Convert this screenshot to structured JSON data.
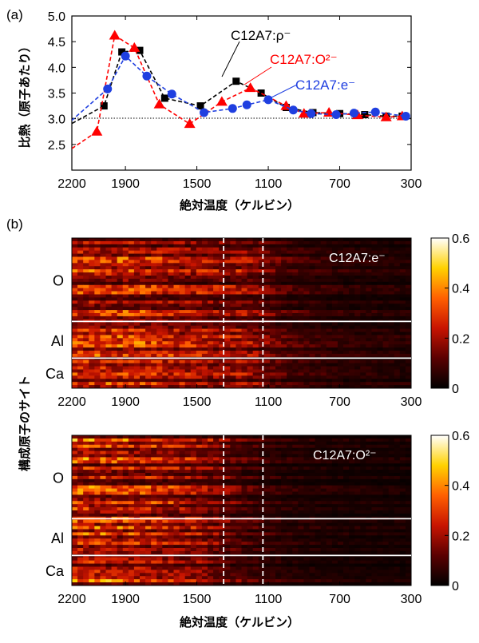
{
  "panel_a_label": "(a)",
  "panel_b_label": "(b)",
  "chart_data": [
    {
      "type": "line",
      "xlabel": "絶対温度（ケルビン）",
      "ylabel": "比熱（原子あたり）",
      "xlim": [
        2200,
        300
      ],
      "ylim": [
        2.0,
        5.0
      ],
      "x_ticks": [
        2200,
        1900,
        1500,
        1100,
        700,
        300
      ],
      "y_ticks": [
        2.5,
        3.0,
        3.5,
        4.0,
        4.5,
        5.0
      ],
      "reference_line": 3.0,
      "series": [
        {
          "name": "C12A7:ρ⁻",
          "color": "#000000",
          "marker": "square",
          "points": [
            [
              2230,
              2.85
            ],
            [
              2020,
              3.25
            ],
            [
              1920,
              4.3
            ],
            [
              1820,
              4.33
            ],
            [
              1680,
              3.4
            ],
            [
              1480,
              3.25
            ],
            [
              1280,
              3.73
            ],
            [
              1140,
              3.5
            ],
            [
              1000,
              3.22
            ],
            [
              850,
              3.12
            ],
            [
              700,
              3.1
            ],
            [
              560,
              3.08
            ],
            [
              440,
              3.05
            ],
            [
              350,
              3.05
            ]
          ]
        },
        {
          "name": "C12A7:O²⁻",
          "color": "#ff0000",
          "marker": "triangle",
          "points": [
            [
              2230,
              2.35
            ],
            [
              2060,
              2.75
            ],
            [
              1960,
              4.62
            ],
            [
              1850,
              4.38
            ],
            [
              1710,
              3.28
            ],
            [
              1540,
              2.9
            ],
            [
              1360,
              3.33
            ],
            [
              1200,
              3.6
            ],
            [
              1000,
              3.25
            ],
            [
              900,
              3.1
            ],
            [
              760,
              3.12
            ],
            [
              600,
              3.07
            ],
            [
              440,
              3.03
            ],
            [
              350,
              3.05
            ]
          ]
        },
        {
          "name": "C12A7:e⁻",
          "color": "#1f3fe0",
          "marker": "circle",
          "points": [
            [
              2230,
              2.88
            ],
            [
              2000,
              3.58
            ],
            [
              1900,
              4.22
            ],
            [
              1780,
              3.83
            ],
            [
              1640,
              3.48
            ],
            [
              1460,
              3.12
            ],
            [
              1300,
              3.2
            ],
            [
              1220,
              3.27
            ],
            [
              1100,
              3.37
            ],
            [
              960,
              3.17
            ],
            [
              860,
              3.1
            ],
            [
              720,
              3.08
            ],
            [
              620,
              3.11
            ],
            [
              500,
              3.13
            ],
            [
              330,
              3.05
            ]
          ]
        }
      ]
    },
    {
      "type": "heatmap",
      "title": "C12A7:e⁻",
      "xlabel": "",
      "ylabel": "構成原子のサイト",
      "xlim": [
        2200,
        300
      ],
      "x_ticks": [
        2200,
        1900,
        1500,
        1100,
        700,
        300
      ],
      "row_groups": [
        "O",
        "Al",
        "Ca"
      ],
      "dashed_lines_x": [
        1350,
        1130
      ],
      "colorbar": {
        "min": 0,
        "max": 0.6,
        "ticks": [
          0,
          0.2,
          0.4,
          0.6
        ]
      },
      "profile": {
        "x": [
          2200,
          1900,
          1500,
          1350,
          1250,
          1130,
          1000,
          700,
          300
        ],
        "value": [
          0.2,
          0.21,
          0.17,
          0.15,
          0.16,
          0.12,
          0.08,
          0.05,
          0.04
        ]
      }
    },
    {
      "type": "heatmap",
      "title": "C12A7:O²⁻",
      "xlabel": "絶対温度（ケルビン）",
      "ylabel": "構成原子のサイト",
      "xlim": [
        2200,
        300
      ],
      "x_ticks": [
        2200,
        1900,
        1500,
        1100,
        700,
        300
      ],
      "row_groups": [
        "O",
        "Al",
        "Ca"
      ],
      "dashed_lines_x": [
        1350,
        1130
      ],
      "colorbar": {
        "min": 0,
        "max": 0.6,
        "ticks": [
          0,
          0.2,
          0.4,
          0.6
        ]
      },
      "profile": {
        "x": [
          2200,
          1900,
          1500,
          1350,
          1250,
          1130,
          1000,
          700,
          300
        ],
        "value": [
          0.24,
          0.22,
          0.17,
          0.12,
          0.09,
          0.07,
          0.05,
          0.035,
          0.03
        ]
      }
    }
  ]
}
